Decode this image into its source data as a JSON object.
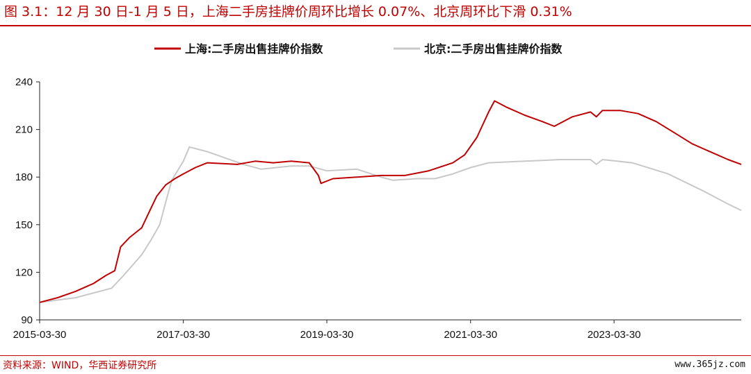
{
  "title": "图 3.1：12 月 30 日-1 月 5 日，上海二手房挂牌价周环比增长 0.07%、北京周环比下滑 0.31%",
  "source": "资料来源：WIND，华西证券研究所",
  "watermark": "www.365jz.com",
  "chart_data": {
    "type": "line",
    "ylim": [
      90,
      240
    ],
    "yticks": [
      90,
      120,
      150,
      180,
      210,
      240
    ],
    "xticks": [
      "2015-03-30",
      "2017-03-30",
      "2019-03-30",
      "2021-03-30",
      "2023-03-30"
    ],
    "xrange": [
      "2015-03-30",
      "2025-01-05"
    ],
    "legend_position": "top-center",
    "grid": false,
    "series": [
      {
        "name": "上海:二手房出售挂牌价指数",
        "color": "#c00000",
        "points": [
          [
            "2015-03-30",
            101
          ],
          [
            "2015-06-30",
            104
          ],
          [
            "2015-09-30",
            108
          ],
          [
            "2015-12-30",
            113
          ],
          [
            "2016-03-01",
            118
          ],
          [
            "2016-04-15",
            121
          ],
          [
            "2016-05-15",
            136
          ],
          [
            "2016-06-30",
            142
          ],
          [
            "2016-08-30",
            148
          ],
          [
            "2016-10-15",
            160
          ],
          [
            "2016-11-15",
            168
          ],
          [
            "2016-12-30",
            175
          ],
          [
            "2017-02-15",
            179
          ],
          [
            "2017-03-30",
            182
          ],
          [
            "2017-05-30",
            186
          ],
          [
            "2017-07-30",
            189
          ],
          [
            "2017-12-30",
            188
          ],
          [
            "2018-03-30",
            190
          ],
          [
            "2018-06-30",
            189
          ],
          [
            "2018-09-30",
            190
          ],
          [
            "2018-12-30",
            189
          ],
          [
            "2019-02-15",
            181
          ],
          [
            "2019-02-28",
            176
          ],
          [
            "2019-04-30",
            179
          ],
          [
            "2019-08-30",
            180
          ],
          [
            "2019-12-30",
            181
          ],
          [
            "2020-04-30",
            181
          ],
          [
            "2020-08-30",
            184
          ],
          [
            "2020-12-30",
            189
          ],
          [
            "2021-02-28",
            194
          ],
          [
            "2021-05-01",
            205
          ],
          [
            "2021-06-30",
            221
          ],
          [
            "2021-07-30",
            228
          ],
          [
            "2021-09-30",
            224
          ],
          [
            "2021-12-30",
            219
          ],
          [
            "2022-03-30",
            215
          ],
          [
            "2022-05-30",
            212
          ],
          [
            "2022-08-30",
            218
          ],
          [
            "2022-11-30",
            221
          ],
          [
            "2022-12-30",
            218
          ],
          [
            "2023-01-30",
            222
          ],
          [
            "2023-04-30",
            222
          ],
          [
            "2023-07-30",
            220
          ],
          [
            "2023-10-30",
            215
          ],
          [
            "2024-01-30",
            208
          ],
          [
            "2024-04-30",
            201
          ],
          [
            "2024-07-30",
            196
          ],
          [
            "2024-10-30",
            191
          ],
          [
            "2025-01-05",
            188
          ]
        ]
      },
      {
        "name": "北京:二手房出售挂牌价指数",
        "color": "#c8c8c8",
        "points": [
          [
            "2015-03-30",
            101
          ],
          [
            "2015-09-30",
            104
          ],
          [
            "2016-03-30",
            110
          ],
          [
            "2016-05-30",
            118
          ],
          [
            "2016-08-30",
            131
          ],
          [
            "2016-10-15",
            140
          ],
          [
            "2016-11-30",
            150
          ],
          [
            "2016-12-30",
            164
          ],
          [
            "2017-01-30",
            178
          ],
          [
            "2017-03-30",
            190
          ],
          [
            "2017-04-30",
            199
          ],
          [
            "2017-07-30",
            196
          ],
          [
            "2017-10-30",
            192
          ],
          [
            "2018-01-30",
            188
          ],
          [
            "2018-04-30",
            185
          ],
          [
            "2018-09-30",
            187
          ],
          [
            "2018-12-30",
            187
          ],
          [
            "2019-03-30",
            184
          ],
          [
            "2019-08-30",
            185
          ],
          [
            "2019-12-30",
            180
          ],
          [
            "2020-03-01",
            178
          ],
          [
            "2020-06-30",
            179
          ],
          [
            "2020-09-30",
            179
          ],
          [
            "2020-12-30",
            182
          ],
          [
            "2021-03-30",
            186
          ],
          [
            "2021-06-30",
            189
          ],
          [
            "2021-12-30",
            190
          ],
          [
            "2022-06-30",
            191
          ],
          [
            "2022-11-30",
            191
          ],
          [
            "2022-12-30",
            188
          ],
          [
            "2023-01-30",
            191
          ],
          [
            "2023-06-30",
            189
          ],
          [
            "2023-12-30",
            182
          ],
          [
            "2024-06-30",
            171
          ],
          [
            "2024-10-30",
            163
          ],
          [
            "2025-01-05",
            159
          ]
        ]
      }
    ]
  }
}
